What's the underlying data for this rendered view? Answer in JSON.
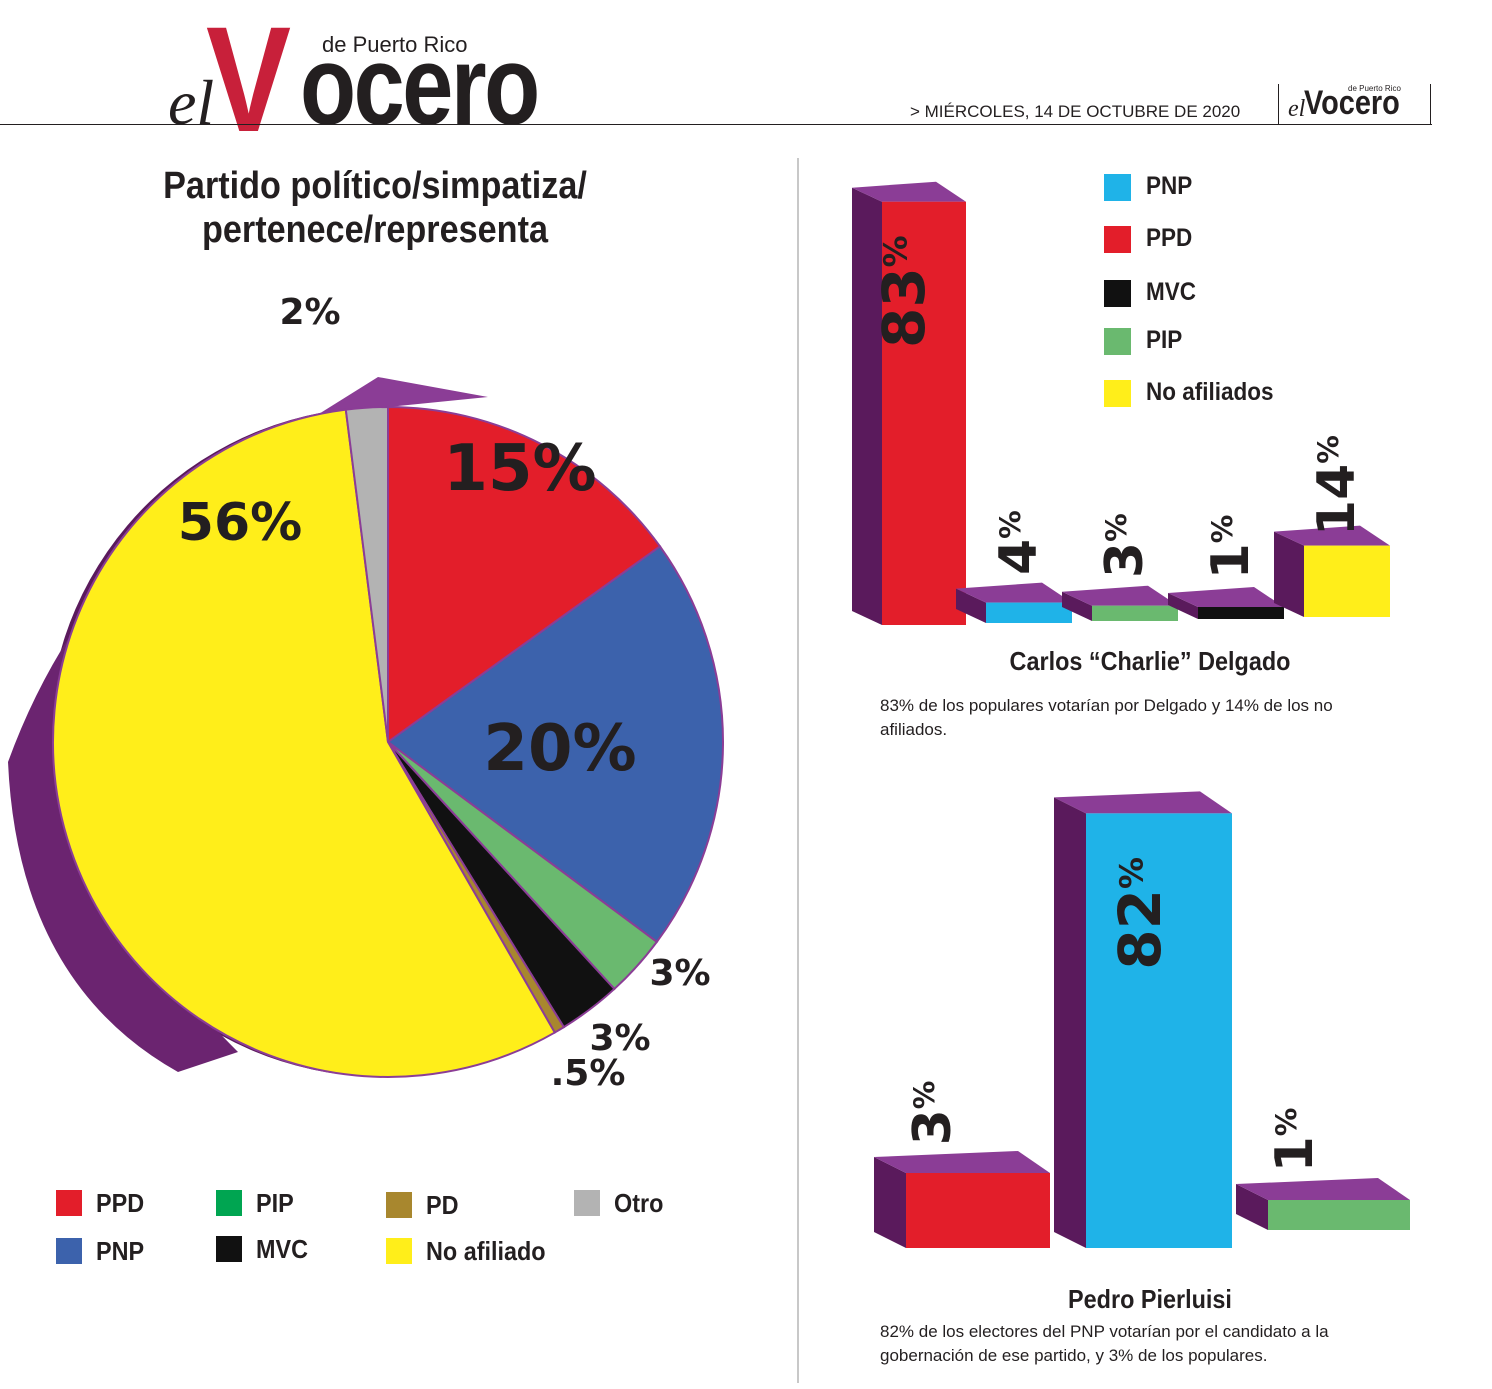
{
  "header": {
    "logo_prefix": "el",
    "logo_initial": "V",
    "logo_rest": "ocero",
    "logo_tagline": "de Puerto Rico",
    "date_line": "> MIÉRCOLES, 14 DE OCTUBRE DE 2020",
    "mini_logo_prefix": "el",
    "mini_logo_main": "Vocero",
    "mini_logo_tagline": "de Puerto Rico"
  },
  "colors": {
    "brand_red": "#c8203a",
    "ppd": "#e31e2a",
    "pnp": "#3c62ac",
    "pnp_bar": "#1fb3e8",
    "pip": "#6ab96f",
    "pip_legend": "#00a551",
    "pd": "#a8872e",
    "mvc": "#111111",
    "no_afiliado": "#ffee1a",
    "otro": "#b3b3b3",
    "side_purple": "#5a1a5c",
    "top_purple": "#8b3d96"
  },
  "chart_data": [
    {
      "type": "pie",
      "title": "Partido político/simpatiza/ pertenece/representa",
      "slices": [
        {
          "name": "PPD",
          "value": 15,
          "label": "15%"
        },
        {
          "name": "PNP",
          "value": 20,
          "label": "20%"
        },
        {
          "name": "PIP",
          "value": 3,
          "label": "3%"
        },
        {
          "name": "MVC",
          "value": 3,
          "label": "3%"
        },
        {
          "name": "PD",
          "value": 0.5,
          "label": ".5%"
        },
        {
          "name": "No afiliado",
          "value": 56,
          "label": "56%"
        },
        {
          "name": "Otro",
          "value": 2,
          "label": "2%"
        }
      ],
      "legend": [
        "PPD",
        "PIP",
        "PD",
        "Otro",
        "PNP",
        "MVC",
        "No afiliado"
      ],
      "legend_placement": "bottom"
    },
    {
      "type": "bar",
      "title": "Carlos “Charlie” Delgado",
      "categories": [
        "PPD",
        "PNP",
        "PIP",
        "MVC",
        "No afiliados"
      ],
      "values": [
        83,
        4,
        3,
        1,
        14
      ],
      "labels": [
        "83",
        "4",
        "3",
        "1",
        "14"
      ],
      "legend": [
        "PNP",
        "PPD",
        "MVC",
        "PIP",
        "No afiliados"
      ],
      "legend_placement": "top-right",
      "caption": "83% de los populares votarían por Delgado y 14% de los no afiliados."
    },
    {
      "type": "bar",
      "title": "Pedro Pierluisi",
      "categories": [
        "PPD",
        "PNP",
        "PIP"
      ],
      "values": [
        3,
        82,
        1
      ],
      "labels": [
        "3",
        "82",
        "1"
      ],
      "caption": "82% de los electores del PNP votarían por el candidato a la gobernación de ese partido, y 3% de los populares."
    }
  ]
}
